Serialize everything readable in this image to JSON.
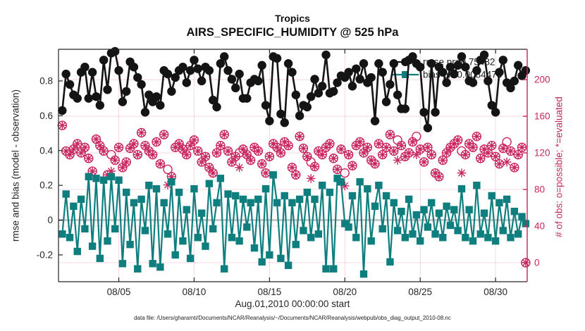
{
  "footer": {
    "text": "data file: /Users/gharamti/Documents/NCAR/Reanalysis/~/Documents/NCAR/Reanalysis/webpub/obs_diag_output_2010-08.nc"
  },
  "chart_data": {
    "type": "line",
    "title": "Tropics",
    "subtitle": "AIRS_SPECIFIC_HUMIDITY @ 525 hPa",
    "xlabel": "Aug.01,2010 00:00:00 start",
    "ylabel_left": "rmse and bias (model - observation)",
    "ylabel_right": "# of obs: o=possible; *=evaluated",
    "x_tick_labels": [
      "08/05",
      "08/10",
      "08/15",
      "08/20",
      "08/25",
      "08/30"
    ],
    "x_tick_days": [
      5,
      10,
      15,
      20,
      25,
      30
    ],
    "xlim_days": [
      1,
      32.1
    ],
    "ylim_left": [
      -0.354,
      0.982
    ],
    "ylim_right": [
      -20.8,
      233.2
    ],
    "y_ticks_left": [
      0.8,
      0.6,
      0.4,
      0.2,
      0,
      -0.2
    ],
    "y_ticks_right": [
      200,
      160,
      120,
      80,
      40,
      0
    ],
    "grid": true,
    "x_start_day": 1.25,
    "x_step_day": 0.25,
    "time_bin_hours": 6,
    "legend": {
      "position": "top-right-inside",
      "entries": [
        "rmse pr=0.75482",
        "bias pr=0.0084473"
      ]
    },
    "colors": {
      "rmse": "#141414",
      "bias": "#0e7f7e",
      "obs": "#c8265f",
      "zero_line": "#c8c8c8",
      "grid": "rgba(200,38,95,0.18)",
      "axis_left": "#262626",
      "axis_right": "#c8265f"
    },
    "series": [
      {
        "name": "rmse pr",
        "marker": "filled-circle",
        "axis": "left",
        "values": [
          0.63,
          0.84,
          0.78,
          0.72,
          0.7,
          0.85,
          0.88,
          0.7,
          0.85,
          0.71,
          0.66,
          0.92,
          0.75,
          0.96,
          0.97,
          0.86,
          0.68,
          0.74,
          0.91,
          0.88,
          0.82,
          0.78,
          0.62,
          0.72,
          0.68,
          0.71,
          0.66,
          0.86,
          0.84,
          0.74,
          0.82,
          0.86,
          0.88,
          0.79,
          0.86,
          0.92,
          0.87,
          0.8,
          0.88,
          0.86,
          0.69,
          0.65,
          0.9,
          0.94,
          0.86,
          0.81,
          0.76,
          0.84,
          0.7,
          0.7,
          0.79,
          0.81,
          0.8,
          0.89,
          0.66,
          0.57,
          0.94,
          0.93,
          0.61,
          0.56,
          0.9,
          0.85,
          0.72,
          0.6,
          0.66,
          0.65,
          0.71,
          0.81,
          0.73,
          0.77,
          0.95,
          0.73,
          0.74,
          0.79,
          0.83,
          0.82,
          0.85,
          0.77,
          0.87,
          0.81,
          0.9,
          0.79,
          0.82,
          0.57,
          0.9,
          0.85,
          0.68,
          0.78,
          0.9,
          0.72,
          0.64,
          0.64,
          0.92,
          0.94,
          0.9,
          0.88,
          0.62,
          0.53,
          0.9,
          0.62,
          0.88,
          0.85,
          0.79,
          0.88,
          0.84,
          0.89,
          0.94,
          0.88,
          0.8,
          0.79,
          0.86,
          0.92,
          0.95,
          0.8,
          0.66,
          0.62,
          0.85,
          0.92,
          0.79,
          0.76,
          0.8,
          0.89,
          0.83,
          0.86
        ]
      },
      {
        "name": "bias pr",
        "marker": "filled-square",
        "axis": "left",
        "values": [
          -0.08,
          0.15,
          -0.1,
          0.08,
          -0.18,
          0.12,
          -0.05,
          0.25,
          -0.15,
          0.24,
          -0.22,
          0.23,
          -0.12,
          0.25,
          -0.05,
          0.23,
          -0.25,
          0.16,
          -0.14,
          0.1,
          -0.28,
          0.12,
          -0.06,
          0.2,
          -0.25,
          0.18,
          -0.27,
          0.1,
          -0.08,
          0.22,
          -0.2,
          0.16,
          -0.12,
          0.06,
          -0.22,
          0.18,
          -0.1,
          0.04,
          -0.15,
          0.21,
          -0.05,
          0.1,
          0.24,
          -0.28,
          0.15,
          -0.1,
          0.14,
          -0.12,
          0.12,
          -0.04,
          0.1,
          -0.16,
          0.12,
          -0.24,
          0.18,
          -0.2,
          0.26,
          0.1,
          -0.22,
          0.14,
          -0.26,
          0.1,
          -0.14,
          0.12,
          -0.06,
          0.16,
          -0.1,
          0.12,
          -0.08,
          0.2,
          -0.28,
          0.16,
          -0.28,
          0.24,
          0.22,
          -0.02,
          -0.04,
          0.14,
          -0.1,
          0.22,
          -0.31,
          0.18,
          -0.12,
          0.08,
          0.2,
          -0.05,
          0.14,
          -0.24,
          0.1,
          -0.06,
          0.05,
          -0.1,
          0.12,
          -0.08,
          0.03,
          -0.12,
          0.06,
          -0.04,
          0.1,
          -0.08,
          0.04,
          -0.1,
          0.08,
          -0.03,
          0.06,
          -0.06,
          0.18,
          -0.1,
          0.06,
          -0.12,
          0.2,
          -0.08,
          0.04,
          -0.1,
          0.14,
          -0.12,
          0.1,
          -0.06,
          0.12,
          -0.1,
          0.05,
          -0.08,
          0.02,
          -0.02
        ]
      },
      {
        "name": "# of obs possible",
        "marker": "open-circle",
        "axis": "right",
        "values": [
          150,
          122,
          118,
          124,
          130,
          120,
          126,
          114,
          100,
          135,
          128,
          122,
          96,
          118,
          112,
          126,
          104,
          110,
          125,
          130,
          118,
          142,
          128,
          122,
          118,
          132,
          108,
          140,
          102,
          94,
          126,
          130,
          124,
          118,
          128,
          134,
          122,
          110,
          116,
          104,
          98,
          120,
          128,
          140,
          122,
          110,
          116,
          120,
          124,
          118,
          112,
          126,
          122,
          108,
          98,
          116,
          130,
          126,
          120,
          132,
          128,
          104,
          96,
          138,
          125,
          116,
          110,
          105,
          122,
          118,
          126,
          130,
          114,
          102,
          124,
          98,
          118,
          106,
          128,
          132,
          120,
          126,
          112,
          108,
          130,
          118,
          126,
          140,
          122,
          134,
          128,
          116,
          120,
          132,
          138,
          124,
          110,
          126,
          118,
          98,
          94,
          112,
          120,
          126,
          130,
          134,
          122,
          118,
          130,
          126,
          138,
          114,
          124,
          120,
          128,
          116,
          108,
          125,
          132,
          122,
          104,
          118,
          126,
          0
        ]
      },
      {
        "name": "# of obs evaluated",
        "marker": "asterisk",
        "axis": "right",
        "values": [
          150,
          122,
          118,
          124,
          130,
          120,
          126,
          114,
          100,
          135,
          128,
          122,
          96,
          100,
          112,
          126,
          104,
          110,
          125,
          130,
          118,
          142,
          128,
          122,
          118,
          132,
          108,
          140,
          85,
          94,
          126,
          130,
          124,
          118,
          128,
          134,
          122,
          110,
          116,
          104,
          98,
          120,
          128,
          140,
          122,
          110,
          116,
          104,
          124,
          118,
          112,
          126,
          122,
          108,
          98,
          116,
          130,
          126,
          120,
          132,
          128,
          104,
          96,
          138,
          125,
          116,
          92,
          105,
          122,
          118,
          126,
          130,
          114,
          102,
          124,
          84,
          118,
          106,
          128,
          132,
          120,
          126,
          112,
          108,
          130,
          118,
          126,
          140,
          122,
          112,
          128,
          116,
          120,
          132,
          118,
          124,
          110,
          126,
          118,
          98,
          94,
          112,
          120,
          126,
          130,
          134,
          98,
          118,
          130,
          126,
          138,
          114,
          124,
          120,
          128,
          116,
          108,
          125,
          110,
          122,
          104,
          118,
          126,
          0
        ]
      }
    ]
  }
}
